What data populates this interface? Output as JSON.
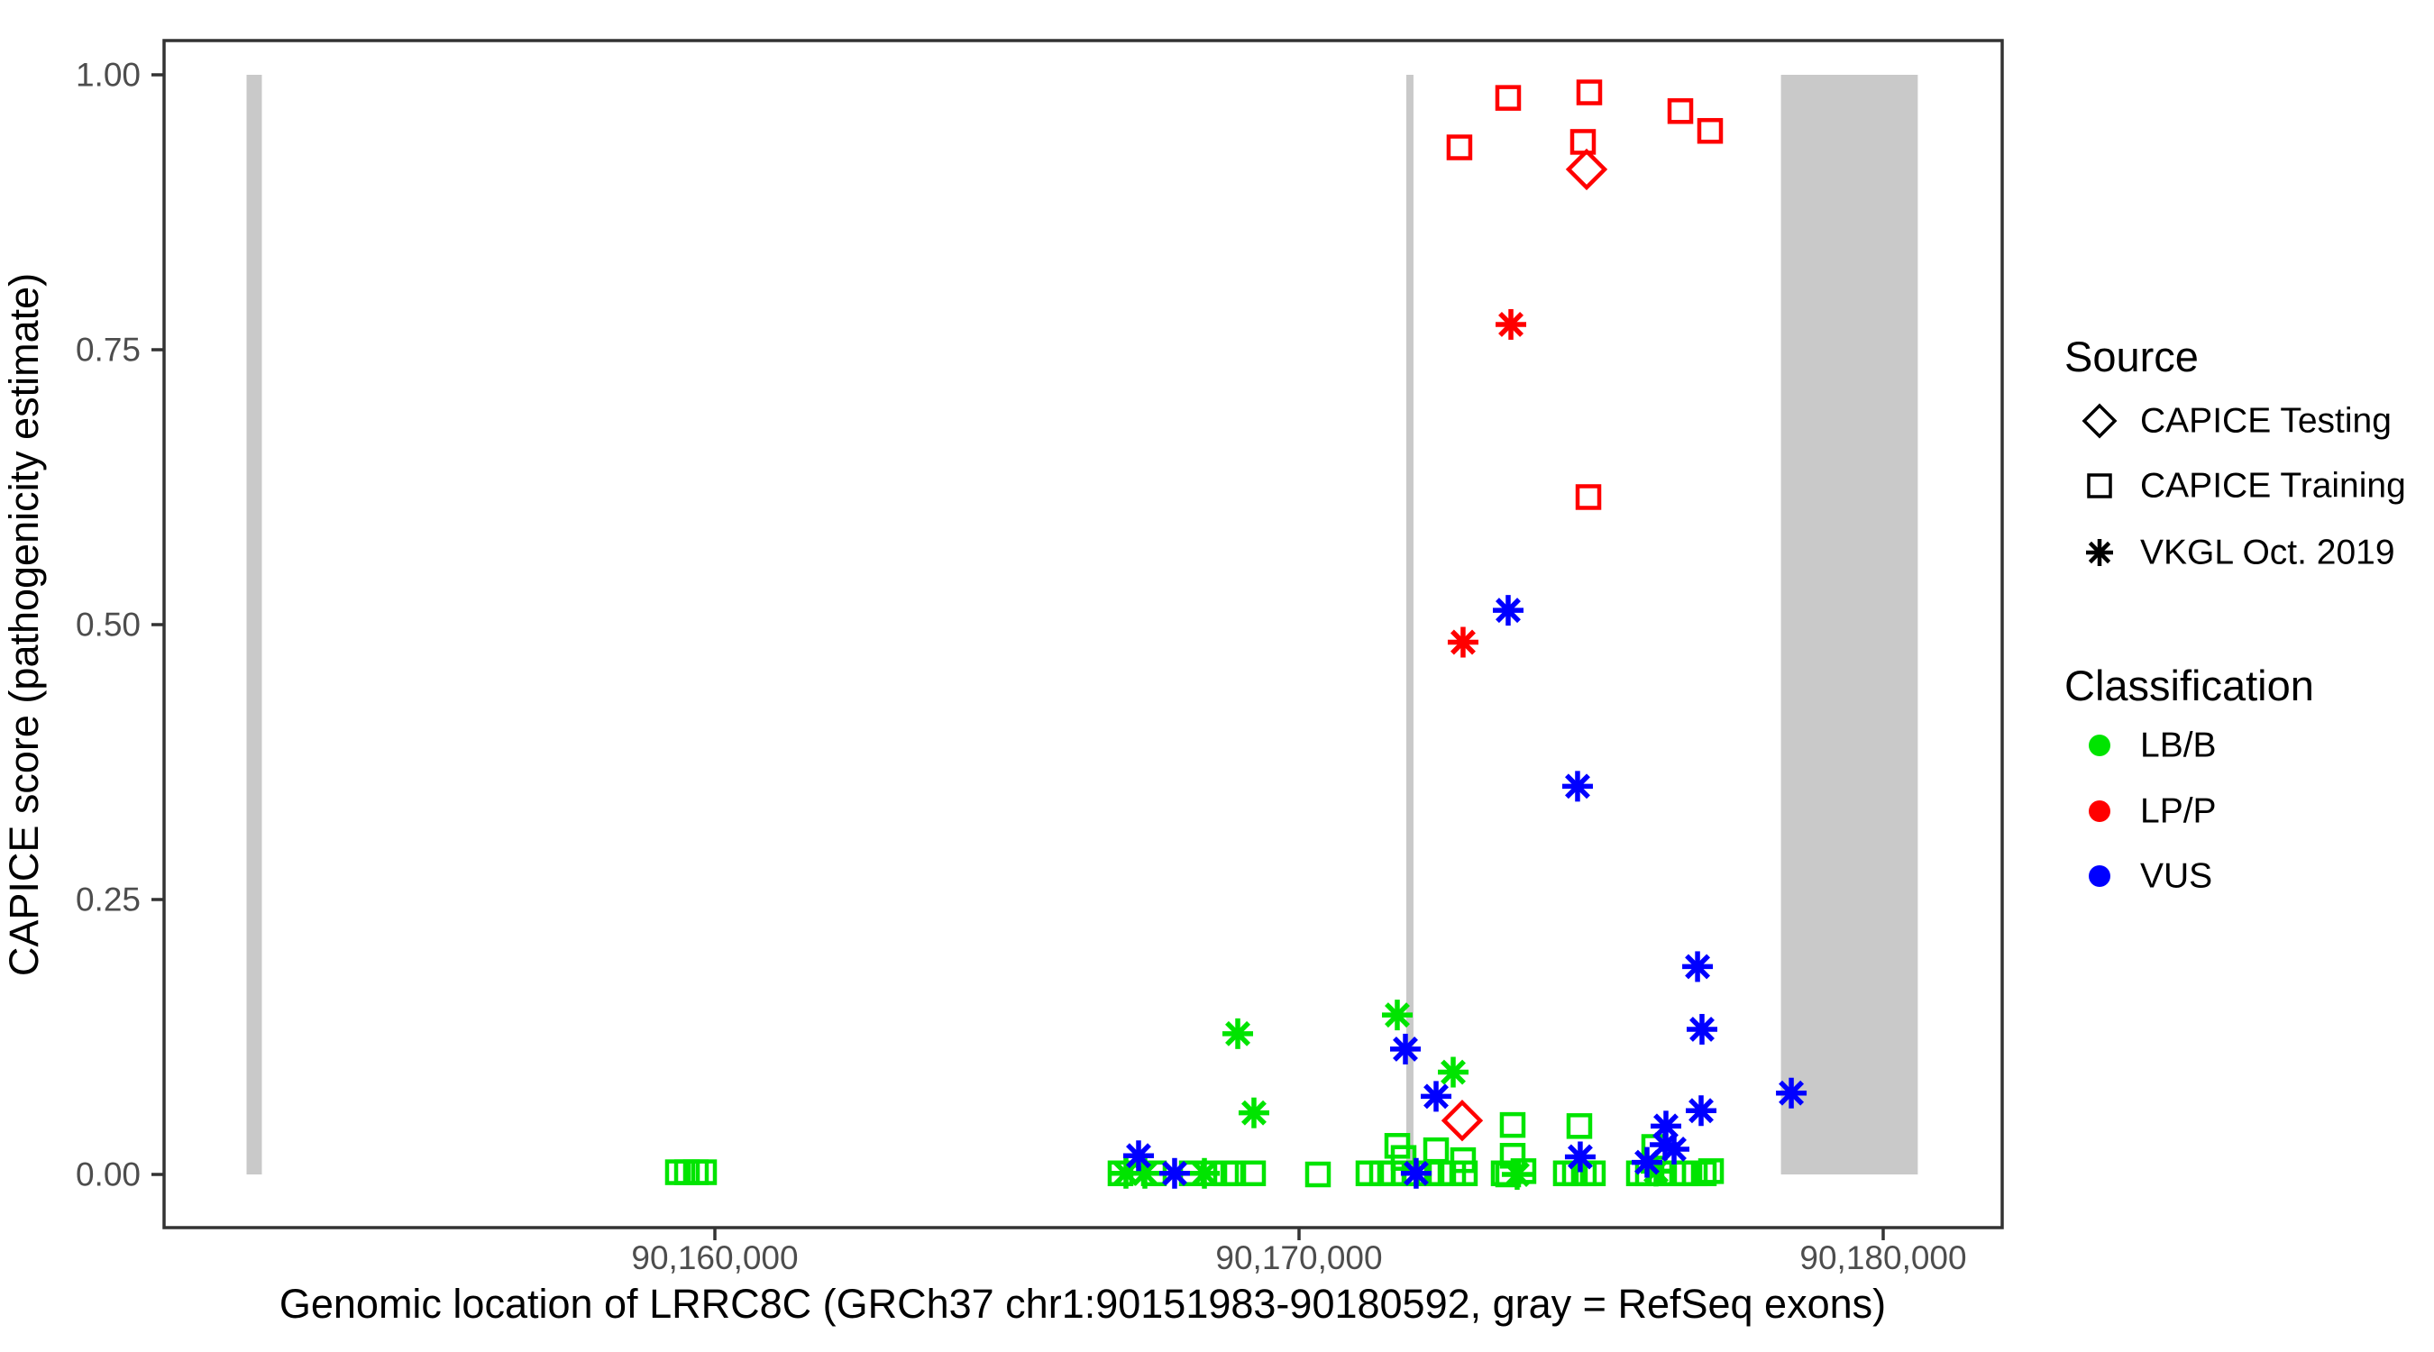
{
  "page": {
    "background": "#ffffff"
  },
  "chart_data": {
    "type": "scatter",
    "title": "",
    "xlabel": "Genomic location of LRRC8C (GRCh37 chr1:90151983-90180592, gray = RefSeq exons)",
    "ylabel": "CAPICE score (pathogenicity estimate)",
    "x_range_bp": [
      90150571,
      90182037
    ],
    "y_range": [
      -0.048,
      1.031
    ],
    "grid": "off",
    "legend_position": "right",
    "x_ticks": [
      {
        "value": 90160000,
        "label": "90,160,000"
      },
      {
        "value": 90170000,
        "label": "90,170,000"
      },
      {
        "value": 90180000,
        "label": "90,180,000"
      }
    ],
    "y_ticks": [
      {
        "value": 0.0,
        "label": "0.00"
      },
      {
        "value": 0.25,
        "label": "0.25"
      },
      {
        "value": 0.5,
        "label": "0.50"
      },
      {
        "value": 0.75,
        "label": "0.75"
      },
      {
        "value": 1.0,
        "label": "1.00"
      }
    ],
    "refseq_exons_bp": [
      [
        90151983,
        90152245
      ],
      [
        90171836,
        90171959
      ],
      [
        90178250,
        90180592
      ]
    ],
    "exon_color": "#c9c9c9",
    "shape_by_source": {
      "CAPICE Testing": "diamond",
      "CAPICE Training": "square",
      "VKGL Oct. 2019": "asterisk"
    },
    "series": [
      {
        "name": "LB/B",
        "color": "#00e400",
        "points": [
          [
            90168951,
            0.128,
            "VKGL Oct. 2019"
          ],
          [
            90169228,
            0.056,
            "VKGL Oct. 2019"
          ],
          [
            90171682,
            0.145,
            "VKGL Oct. 2019"
          ],
          [
            90172639,
            0.093,
            "VKGL Oct. 2019"
          ],
          [
            90167037,
            0.001,
            "VKGL Oct. 2019"
          ],
          [
            90167361,
            0.001,
            "VKGL Oct. 2019"
          ],
          [
            90168380,
            0.001,
            "VKGL Oct. 2019"
          ],
          [
            90173734,
            0.0,
            "VKGL Oct. 2019"
          ],
          [
            90176111,
            0.003,
            "VKGL Oct. 2019"
          ],
          [
            90159367,
            0.002,
            "CAPICE Training"
          ],
          [
            90159522,
            0.002,
            "CAPICE Training"
          ],
          [
            90159676,
            0.002,
            "CAPICE Training"
          ],
          [
            90159815,
            0.002,
            "CAPICE Training"
          ],
          [
            90166944,
            0.001,
            "CAPICE Training"
          ],
          [
            90167515,
            0.001,
            "CAPICE Training"
          ],
          [
            90168164,
            0.001,
            "CAPICE Training"
          ],
          [
            90168550,
            0.001,
            "CAPICE Training"
          ],
          [
            90168750,
            0.001,
            "CAPICE Training"
          ],
          [
            90168874,
            0.001,
            "CAPICE Training"
          ],
          [
            90169213,
            0.001,
            "CAPICE Training"
          ],
          [
            90170324,
            0.0,
            "CAPICE Training"
          ],
          [
            90171188,
            0.001,
            "CAPICE Training"
          ],
          [
            90171420,
            0.001,
            "CAPICE Training"
          ],
          [
            90171605,
            0.001,
            "CAPICE Training"
          ],
          [
            90171682,
            0.026,
            "CAPICE Training"
          ],
          [
            90171790,
            0.015,
            "CAPICE Training"
          ],
          [
            90171806,
            0.001,
            "CAPICE Training"
          ],
          [
            90171991,
            0.001,
            "CAPICE Training"
          ],
          [
            90172222,
            0.001,
            "CAPICE Training"
          ],
          [
            90172346,
            0.022,
            "CAPICE Training"
          ],
          [
            90172423,
            0.001,
            "CAPICE Training"
          ],
          [
            90172639,
            0.001,
            "CAPICE Training"
          ],
          [
            90172808,
            0.013,
            "CAPICE Training"
          ],
          [
            90172839,
            0.001,
            "CAPICE Training"
          ],
          [
            90173503,
            0.001,
            "CAPICE Training"
          ],
          [
            90173580,
            0.0,
            "CAPICE Training"
          ],
          [
            90173657,
            0.045,
            "CAPICE Training"
          ],
          [
            90173657,
            0.017,
            "CAPICE Training"
          ],
          [
            90173842,
            0.003,
            "CAPICE Training"
          ],
          [
            90174567,
            0.001,
            "CAPICE Training"
          ],
          [
            90174722,
            0.001,
            "CAPICE Training"
          ],
          [
            90174799,
            0.044,
            "CAPICE Training"
          ],
          [
            90174876,
            0.001,
            "CAPICE Training"
          ],
          [
            90175030,
            0.001,
            "CAPICE Training"
          ],
          [
            90175818,
            0.001,
            "CAPICE Training"
          ],
          [
            90175972,
            0.001,
            "CAPICE Training"
          ],
          [
            90176080,
            0.025,
            "CAPICE Training"
          ],
          [
            90176188,
            0.001,
            "CAPICE Training"
          ],
          [
            90176404,
            0.001,
            "CAPICE Training"
          ],
          [
            90176620,
            0.001,
            "CAPICE Training"
          ],
          [
            90176775,
            0.001,
            "CAPICE Training"
          ],
          [
            90176929,
            0.001,
            "CAPICE Training"
          ],
          [
            90177053,
            0.003,
            "CAPICE Training"
          ]
        ]
      },
      {
        "name": "VUS",
        "color": "#0000ff",
        "points": [
          [
            90173580,
            0.513,
            "VKGL Oct. 2019"
          ],
          [
            90174768,
            0.353,
            "VKGL Oct. 2019"
          ],
          [
            90176822,
            0.189,
            "VKGL Oct. 2019"
          ],
          [
            90176898,
            0.132,
            "VKGL Oct. 2019"
          ],
          [
            90171821,
            0.114,
            "VKGL Oct. 2019"
          ],
          [
            90178427,
            0.074,
            "VKGL Oct. 2019"
          ],
          [
            90172346,
            0.071,
            "VKGL Oct. 2019"
          ],
          [
            90176883,
            0.058,
            "VKGL Oct. 2019"
          ],
          [
            90176281,
            0.044,
            "VKGL Oct. 2019"
          ],
          [
            90176266,
            0.027,
            "VKGL Oct. 2019"
          ],
          [
            90176420,
            0.023,
            "VKGL Oct. 2019"
          ],
          [
            90167253,
            0.017,
            "VKGL Oct. 2019"
          ],
          [
            90174814,
            0.016,
            "VKGL Oct. 2019"
          ],
          [
            90175957,
            0.011,
            "VKGL Oct. 2019"
          ],
          [
            90167870,
            0.001,
            "VKGL Oct. 2019"
          ],
          [
            90172005,
            0.001,
            "VKGL Oct. 2019"
          ]
        ]
      },
      {
        "name": "LP/P",
        "color": "#ff0000",
        "points": [
          [
            90172746,
            0.934,
            "CAPICE Training"
          ],
          [
            90173580,
            0.979,
            "CAPICE Training"
          ],
          [
            90174861,
            0.939,
            "CAPICE Training"
          ],
          [
            90174969,
            0.984,
            "CAPICE Training"
          ],
          [
            90176528,
            0.967,
            "CAPICE Training"
          ],
          [
            90177037,
            0.949,
            "CAPICE Training"
          ],
          [
            90174954,
            0.616,
            "CAPICE Training"
          ],
          [
            90174923,
            0.914,
            "CAPICE Testing"
          ],
          [
            90172793,
            0.049,
            "CAPICE Testing"
          ],
          [
            90173627,
            0.773,
            "VKGL Oct. 2019"
          ],
          [
            90172808,
            0.484,
            "VKGL Oct. 2019"
          ]
        ]
      }
    ]
  },
  "legend": {
    "source": {
      "title": "Source",
      "items": [
        {
          "label": "CAPICE Testing",
          "shape": "diamond"
        },
        {
          "label": "CAPICE Training",
          "shape": "square"
        },
        {
          "label": "VKGL Oct. 2019",
          "shape": "asterisk"
        }
      ]
    },
    "classification": {
      "title": "Classification",
      "items": [
        {
          "label": "LB/B",
          "color": "#00e400"
        },
        {
          "label": "LP/P",
          "color": "#ff0000"
        },
        {
          "label": "VUS",
          "color": "#0000ff"
        }
      ]
    }
  }
}
